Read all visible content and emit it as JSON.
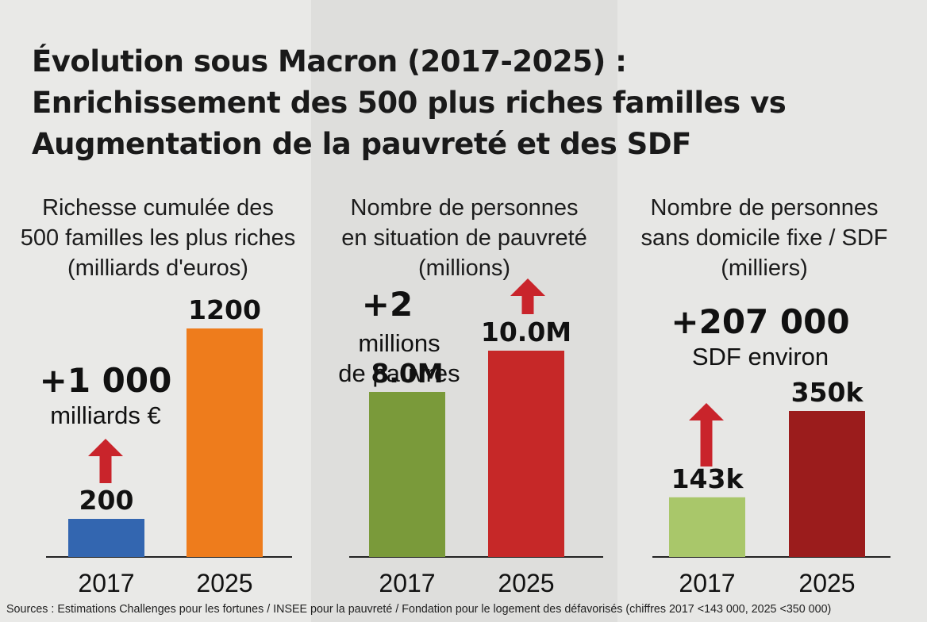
{
  "title_lines": [
    "Évolution sous Macron (2017-2025) :",
    "Enrichissement des 500 plus riches familles vs",
    "Augmentation de la pauvreté et des SDF"
  ],
  "colors": {
    "arrow": "#c9242b",
    "axis": "#222222"
  },
  "chart_data": [
    {
      "type": "bar",
      "title_lines": [
        "Richesse cumulée des",
        "500 familles les plus riches",
        "(milliards d'euros)"
      ],
      "categories": [
        "2017",
        "2025"
      ],
      "values": [
        200,
        1200
      ],
      "value_labels": [
        "200",
        "1200"
      ],
      "colors": [
        "#3366b0",
        "#ee7c1c"
      ],
      "ylim": [
        0,
        1200
      ],
      "annotation": {
        "big": "+1 000",
        "small": [
          "milliards €"
        ]
      }
    },
    {
      "type": "bar",
      "title_lines": [
        "Nombre de personnes",
        "en situation de pauvreté",
        "(millions)"
      ],
      "categories": [
        "2017",
        "2025"
      ],
      "values": [
        8.0,
        10.0
      ],
      "value_labels": [
        "8.0M",
        "10.0M"
      ],
      "colors": [
        "#7a9a3a",
        "#c62828"
      ],
      "ylim": [
        0,
        10.0
      ],
      "annotation": {
        "big": "+2",
        "small": [
          "millions",
          "de pauvres"
        ]
      }
    },
    {
      "type": "bar",
      "title_lines": [
        "Nombre de personnes",
        "sans domicile fixe / SDF",
        "(milliers)"
      ],
      "categories": [
        "2017",
        "2025"
      ],
      "values": [
        143,
        350
      ],
      "value_labels": [
        "143k",
        "350k"
      ],
      "colors": [
        "#a9c76a",
        "#9b1c1c"
      ],
      "ylim": [
        0,
        350
      ],
      "annotation": {
        "big": "+207 000",
        "small": [
          "SDF environ"
        ]
      }
    }
  ],
  "source": "Sources : Estimations Challenges pour les fortunes / INSEE pour la pauvreté / Fondation pour le logement des défavorisés (chiffres 2017 <143 000, 2025 <350 000)"
}
